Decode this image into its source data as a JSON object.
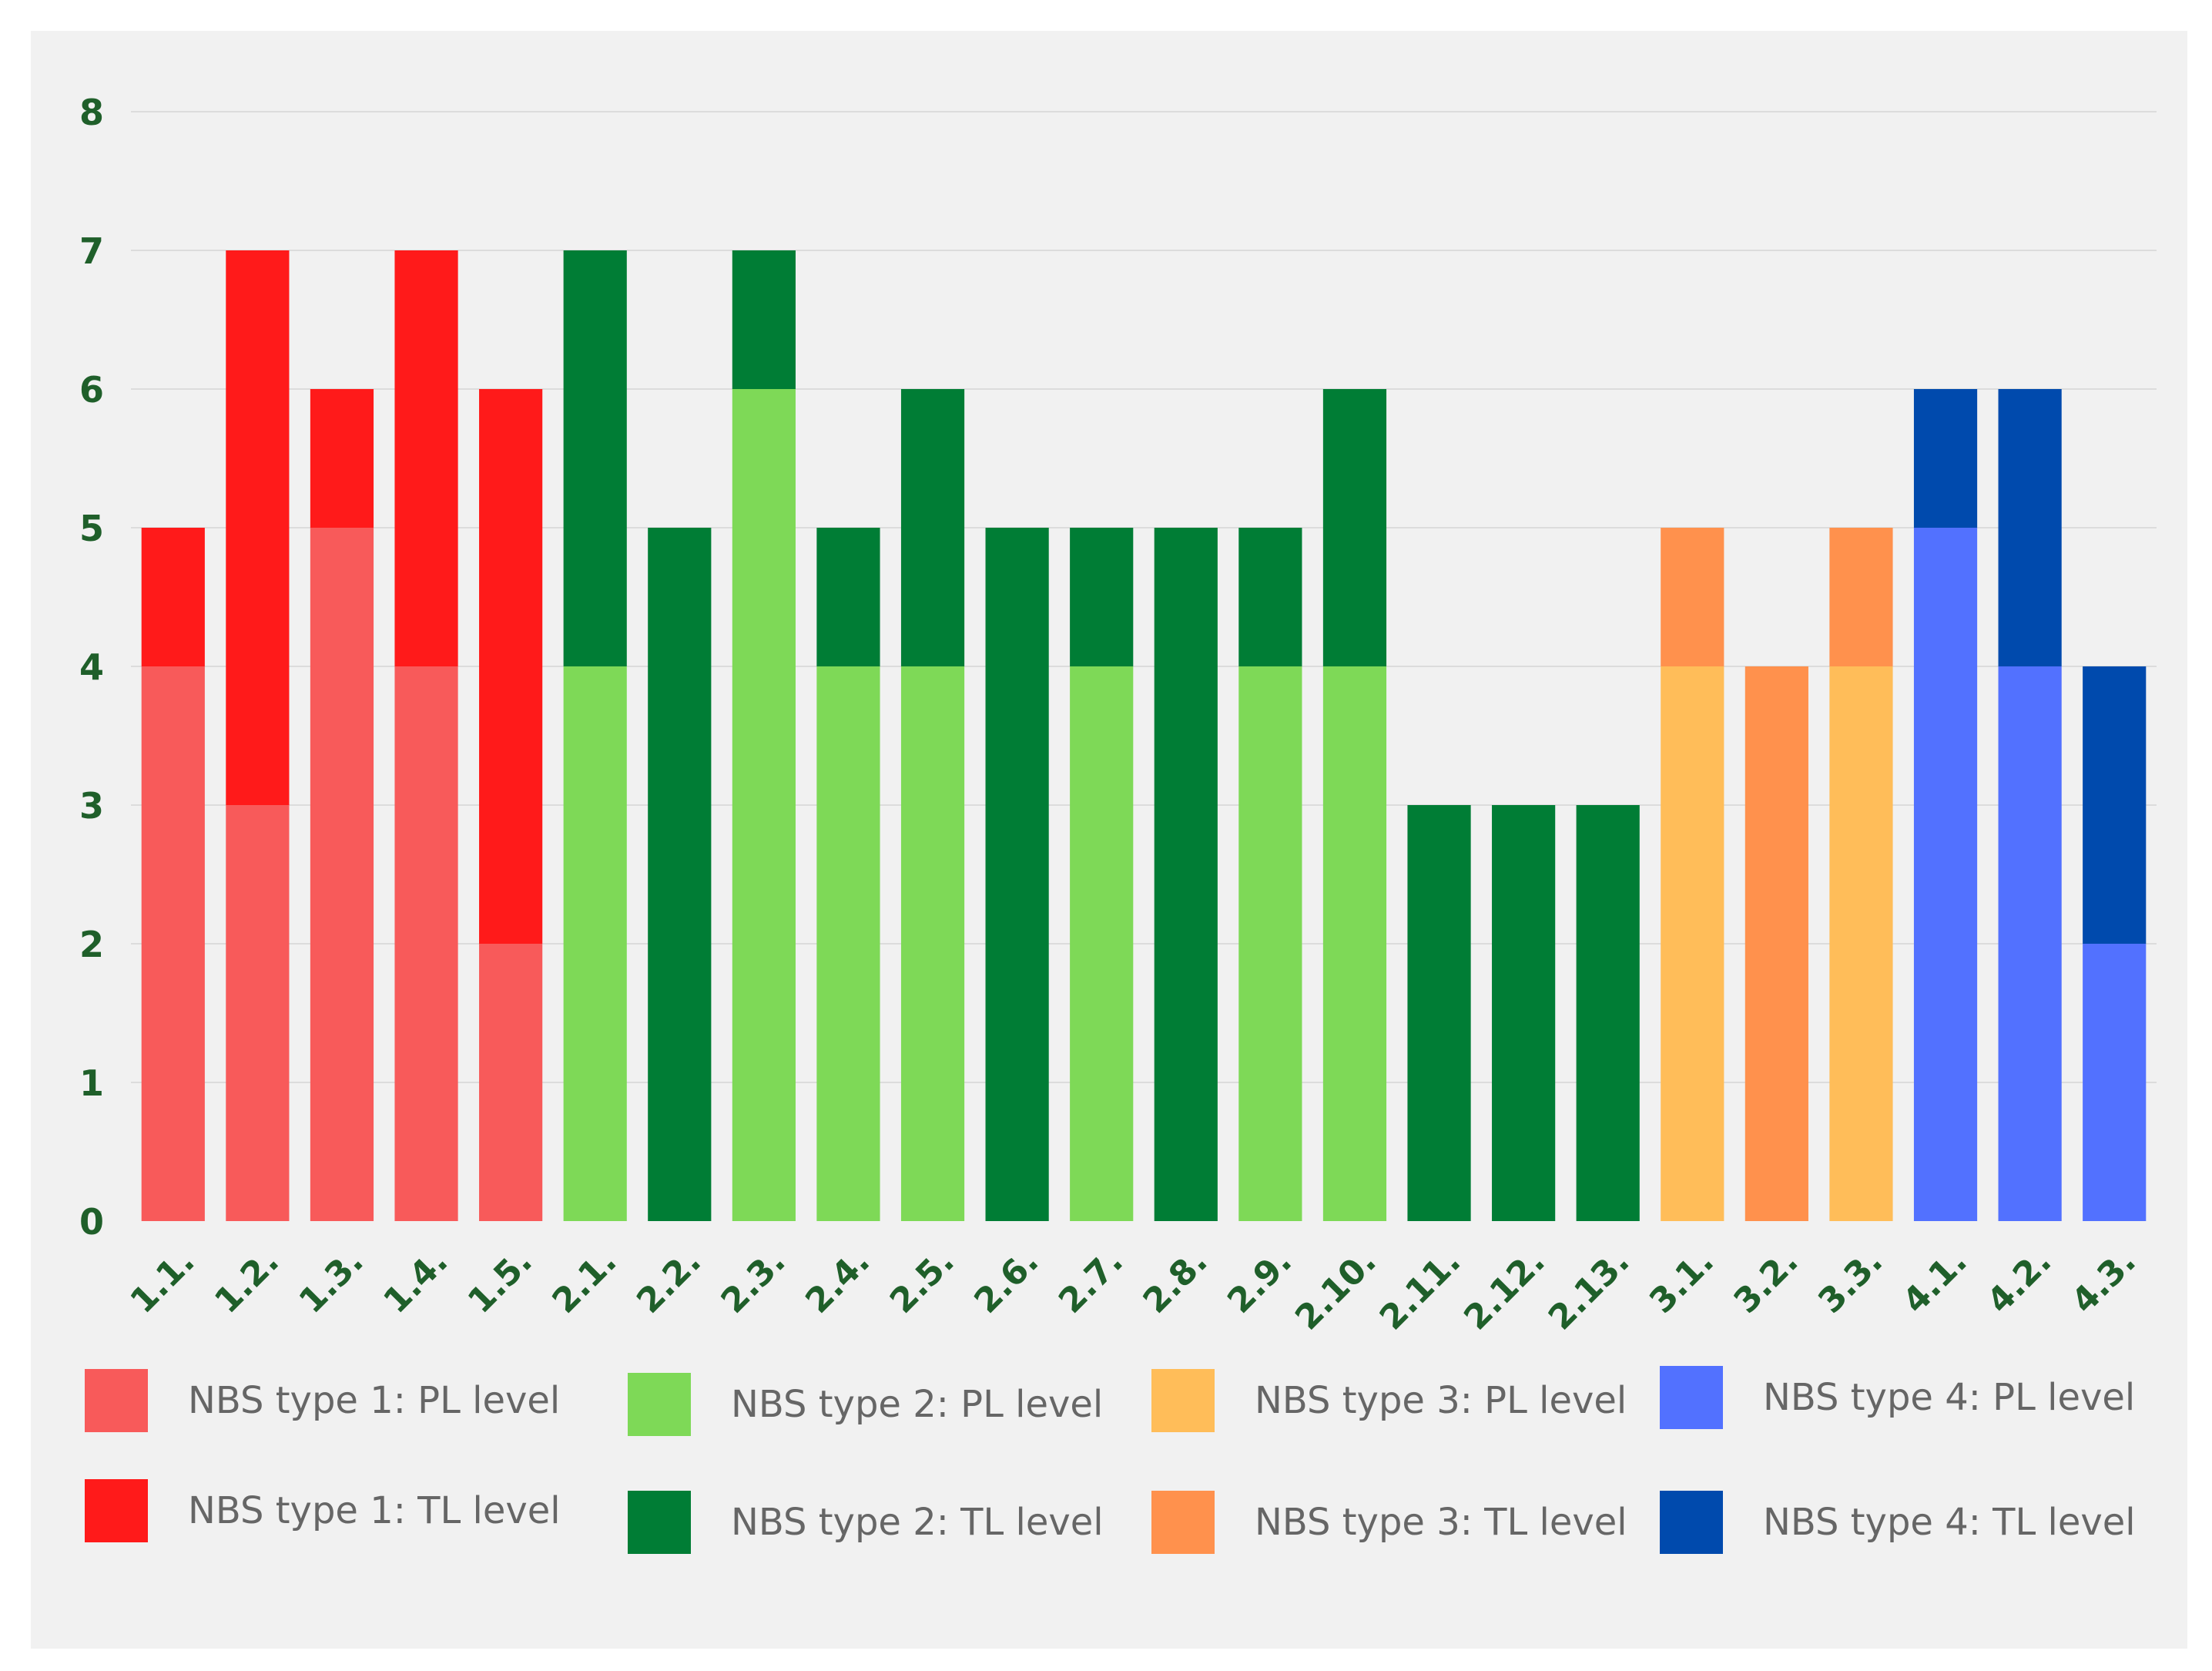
{
  "chart_data": {
    "type": "bar",
    "stacked": true,
    "title": "",
    "xlabel": "",
    "ylabel": "",
    "ylim": [
      0,
      8
    ],
    "yticks": [
      0,
      1,
      2,
      3,
      4,
      5,
      6,
      7,
      8
    ],
    "grid": true,
    "legend_position": "bottom",
    "categories": [
      "1.1.",
      "1.2.",
      "1.3.",
      "1.4.",
      "1.5.",
      "2.1.",
      "2.2.",
      "2.3.",
      "2.4.",
      "2.5.",
      "2.6.",
      "2.7.",
      "2.8.",
      "2.9.",
      "2.10.",
      "2.11.",
      "2.12.",
      "2.13.",
      "3.1.",
      "3.2.",
      "3.3.",
      "4.1.",
      "4.2.",
      "4.3."
    ],
    "series": [
      {
        "name": "NBS type 1: PL level",
        "color": "#f85a5a",
        "values": [
          4,
          3,
          5,
          4,
          2,
          0,
          0,
          0,
          0,
          0,
          0,
          0,
          0,
          0,
          0,
          0,
          0,
          0,
          0,
          0,
          0,
          0,
          0,
          0
        ]
      },
      {
        "name": "NBS type 1: TL level",
        "color": "#ff1a1a",
        "values": [
          1,
          4,
          1,
          3,
          4,
          0,
          0,
          0,
          0,
          0,
          0,
          0,
          0,
          0,
          0,
          0,
          0,
          0,
          0,
          0,
          0,
          0,
          0,
          0
        ]
      },
      {
        "name": "NBS type 2: PL level",
        "color": "#7ed957",
        "values": [
          0,
          0,
          0,
          0,
          0,
          4,
          0,
          6,
          4,
          4,
          0,
          4,
          0,
          4,
          4,
          0,
          0,
          0,
          0,
          0,
          0,
          0,
          0,
          0
        ]
      },
      {
        "name": "NBS type 2: TL level",
        "color": "#007d35",
        "values": [
          0,
          0,
          0,
          0,
          0,
          3,
          5,
          1,
          1,
          2,
          5,
          1,
          5,
          1,
          2,
          3,
          3,
          3,
          0,
          0,
          0,
          0,
          0,
          0
        ]
      },
      {
        "name": "NBS type 3: PL level",
        "color": "#ffbd59",
        "values": [
          0,
          0,
          0,
          0,
          0,
          0,
          0,
          0,
          0,
          0,
          0,
          0,
          0,
          0,
          0,
          0,
          0,
          0,
          4,
          0,
          4,
          0,
          0,
          0
        ]
      },
      {
        "name": "NBS type 3: TL level",
        "color": "#ff914d",
        "values": [
          0,
          0,
          0,
          0,
          0,
          0,
          0,
          0,
          0,
          0,
          0,
          0,
          0,
          0,
          0,
          0,
          0,
          0,
          1,
          4,
          1,
          0,
          0,
          0
        ]
      },
      {
        "name": "NBS type 4: PL level",
        "color": "#5271ff",
        "values": [
          0,
          0,
          0,
          0,
          0,
          0,
          0,
          0,
          0,
          0,
          0,
          0,
          0,
          0,
          0,
          0,
          0,
          0,
          0,
          0,
          0,
          5,
          4,
          2
        ]
      },
      {
        "name": "NBS type 4: TL level",
        "color": "#004aad",
        "values": [
          0,
          0,
          0,
          0,
          0,
          0,
          0,
          0,
          0,
          0,
          0,
          0,
          0,
          0,
          0,
          0,
          0,
          0,
          0,
          0,
          0,
          1,
          2,
          2
        ]
      }
    ],
    "colors": {
      "tick_label": "#1f5f2a",
      "grid": "#dcdcdc",
      "legend_text": "#666666"
    }
  }
}
